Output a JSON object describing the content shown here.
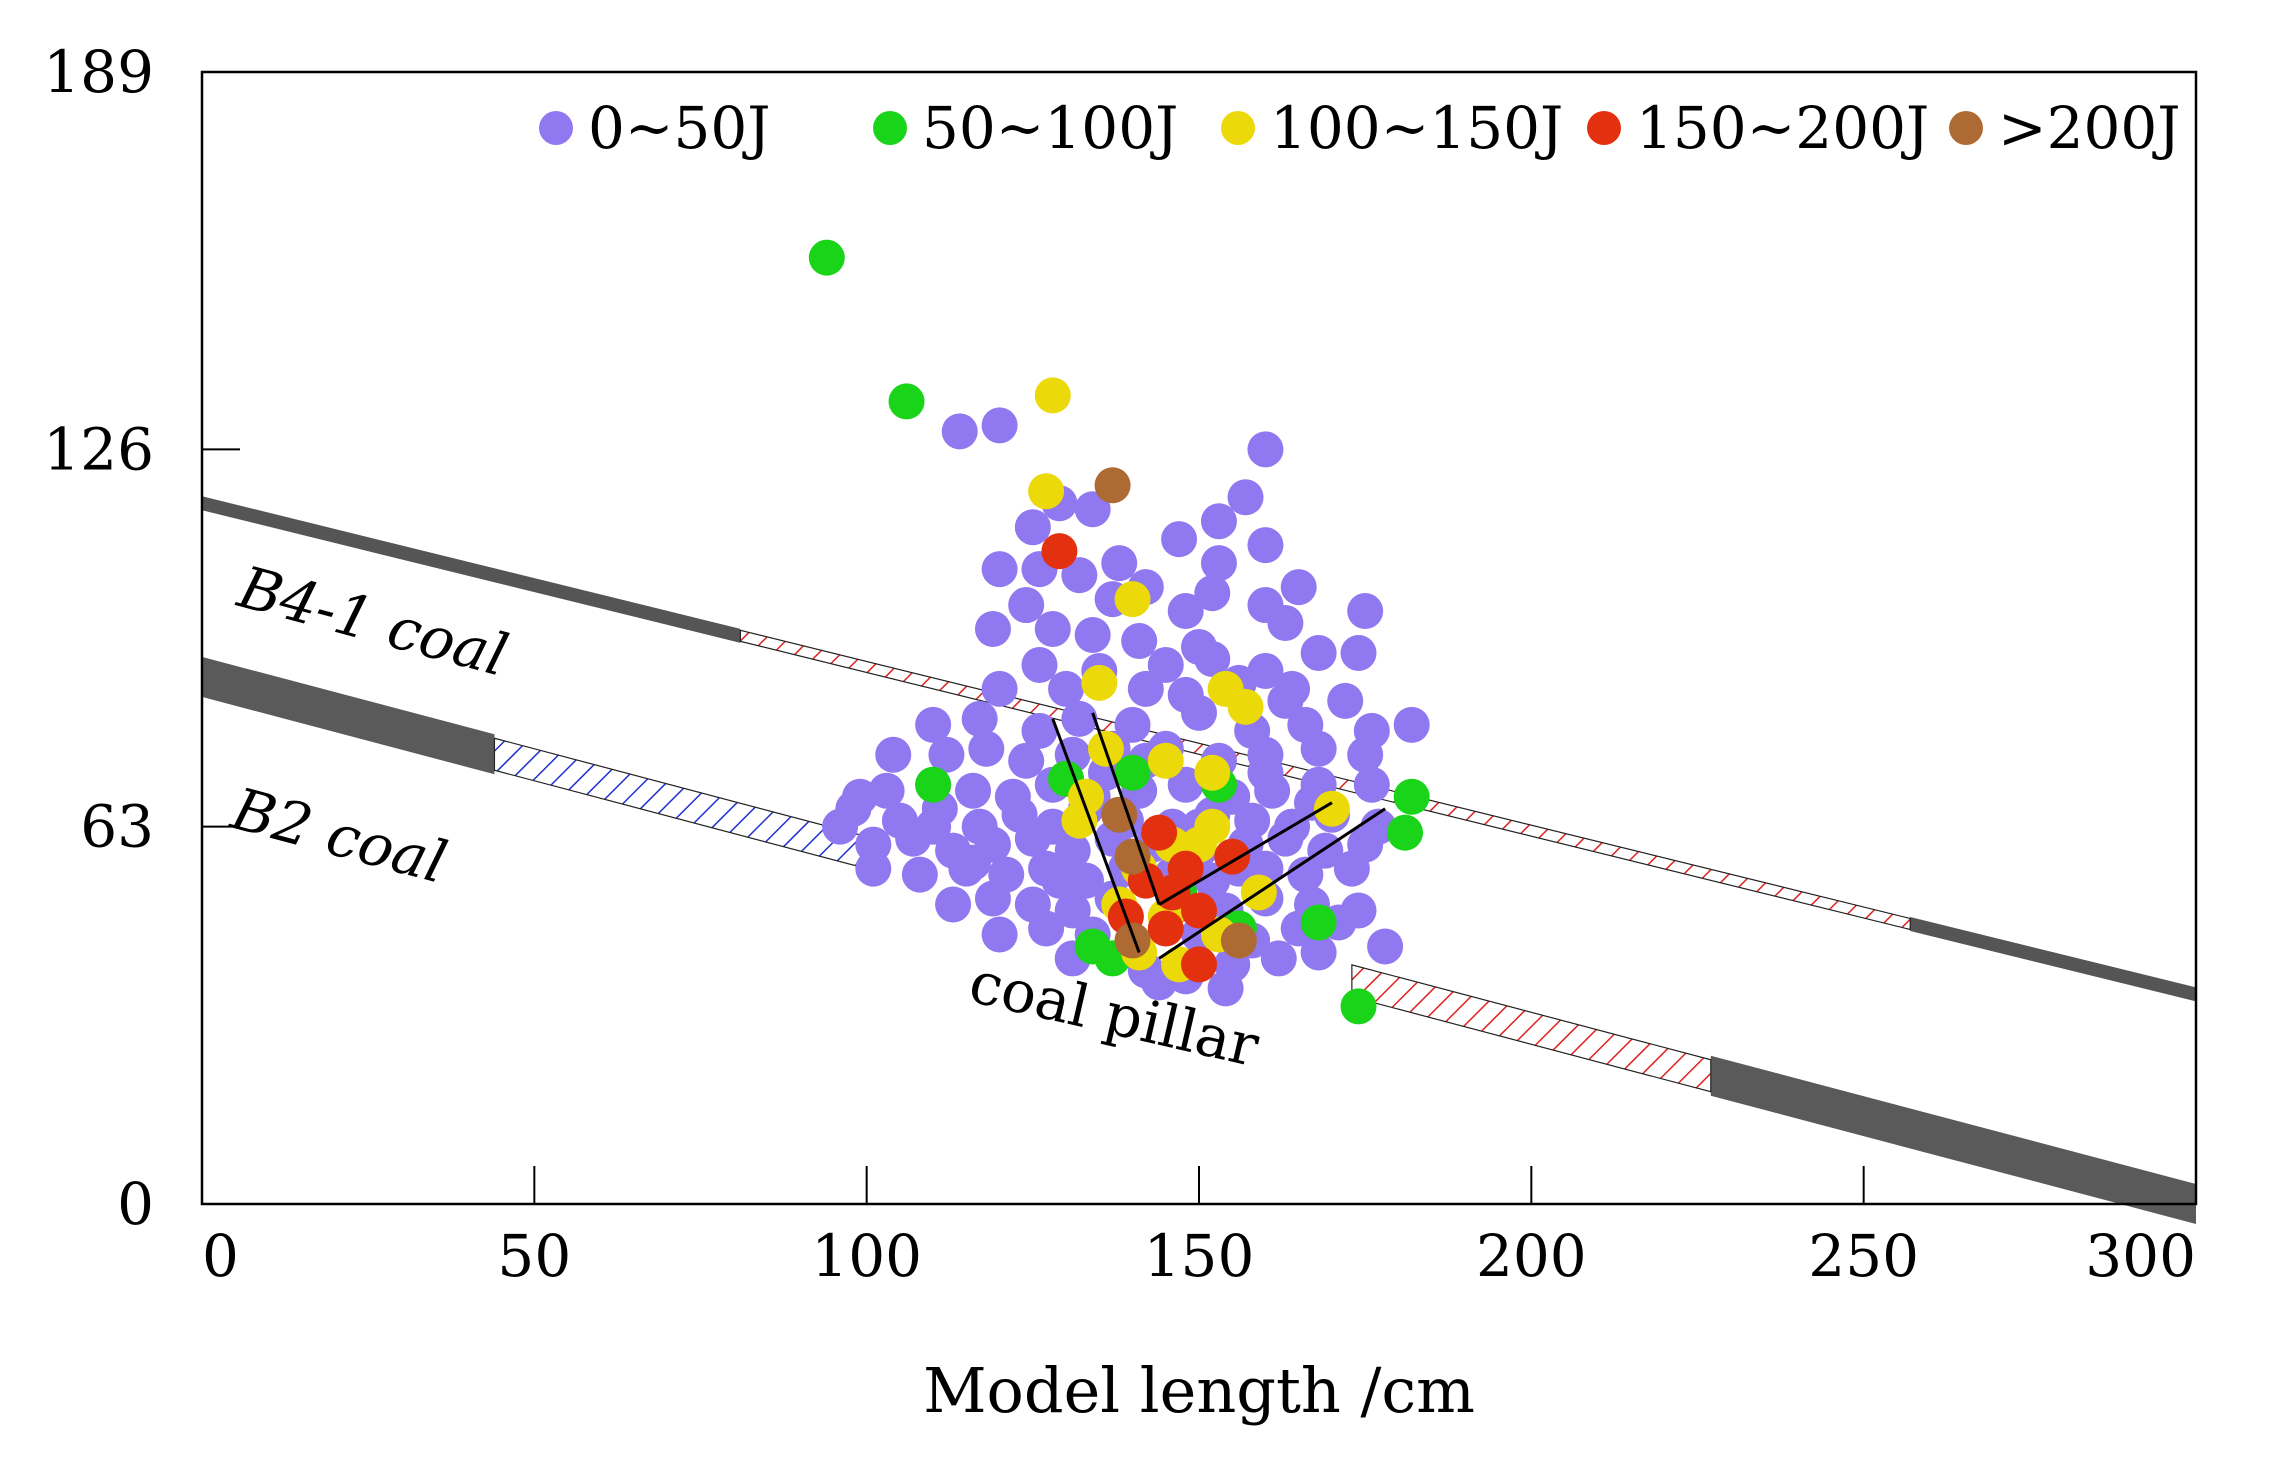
{
  "chart_data": {
    "type": "scatter",
    "title": "",
    "xlabel": "Model length /cm",
    "ylabel": "",
    "xlim": [
      0,
      300
    ],
    "ylim": [
      0,
      189
    ],
    "xticks": [
      0,
      50,
      100,
      150,
      200,
      250,
      300
    ],
    "yticks": [
      0,
      63,
      126,
      189
    ],
    "legend": {
      "placement": "top",
      "entries": [
        {
          "label": "0~50J",
          "color": "#8f78f0"
        },
        {
          "label": "50~100J",
          "color": "#19d419"
        },
        {
          "label": "100~150J",
          "color": "#ecd90a"
        },
        {
          "label": "150~200J",
          "color": "#e3300e"
        },
        {
          "label": ">200J",
          "color": "#ad6a32"
        }
      ]
    },
    "annotations": [
      {
        "text": "B4-1 coal",
        "x": 5,
        "y": 100,
        "angle": 15
      },
      {
        "text": "B2 coal",
        "x": 4,
        "y": 63,
        "angle": 15
      },
      {
        "text": "coal pillar",
        "x": 115,
        "y": 34,
        "angle": 13
      }
    ],
    "seams": [
      {
        "name": "B4-1 coal",
        "x0": 0,
        "y0": 117,
        "x1": 300,
        "y1": 35,
        "solid_ranges": [
          [
            0,
            81
          ],
          [
            257,
            300
          ]
        ],
        "hatched_range": [
          81,
          257
        ],
        "hatch_color": "#e02020"
      },
      {
        "name": "B2 coal",
        "x0": 0,
        "y0": 88,
        "x1": 300,
        "y1": 0,
        "solid_ranges": [
          [
            0,
            44
          ],
          [
            227,
            300
          ]
        ],
        "hatched_ranges": [
          {
            "range": [
              44,
              101
            ],
            "color": "#2030d0"
          },
          {
            "range": [
              173,
              227
            ],
            "color": "#e02020"
          }
        ]
      }
    ],
    "fracture_lines": [
      {
        "x0": 128,
        "y0": 81,
        "x1": 141,
        "y1": 42
      },
      {
        "x0": 134,
        "y0": 82,
        "x1": 144,
        "y1": 50
      },
      {
        "x0": 144,
        "y0": 50,
        "x1": 170,
        "y1": 67
      },
      {
        "x0": 144,
        "y0": 41,
        "x1": 178,
        "y1": 66
      }
    ],
    "series": [
      {
        "name": "0~50J",
        "color": "#8f78f0",
        "points": [
          [
            114,
            129
          ],
          [
            120,
            130
          ],
          [
            160,
            126
          ],
          [
            129,
            117
          ],
          [
            157,
            118
          ],
          [
            125,
            113
          ],
          [
            134,
            116
          ],
          [
            153,
            114
          ],
          [
            147,
            111
          ],
          [
            138,
            107
          ],
          [
            160,
            110
          ],
          [
            153,
            107
          ],
          [
            120,
            106
          ],
          [
            126,
            106
          ],
          [
            132,
            105
          ],
          [
            142,
            103
          ],
          [
            152,
            102
          ],
          [
            165,
            103
          ],
          [
            124,
            100
          ],
          [
            137,
            101
          ],
          [
            148,
            99
          ],
          [
            160,
            100
          ],
          [
            175,
            99
          ],
          [
            119,
            96
          ],
          [
            128,
            96
          ],
          [
            134,
            95
          ],
          [
            141,
            94
          ],
          [
            150,
            93
          ],
          [
            163,
            97
          ],
          [
            174,
            92
          ],
          [
            126,
            90
          ],
          [
            135,
            89
          ],
          [
            145,
            90
          ],
          [
            152,
            91
          ],
          [
            160,
            89
          ],
          [
            168,
            92
          ],
          [
            120,
            86
          ],
          [
            130,
            86
          ],
          [
            142,
            86
          ],
          [
            148,
            85
          ],
          [
            156,
            87
          ],
          [
            164,
            86
          ],
          [
            172,
            84
          ],
          [
            110,
            80
          ],
          [
            117,
            81
          ],
          [
            126,
            79
          ],
          [
            132,
            81
          ],
          [
            140,
            80
          ],
          [
            150,
            82
          ],
          [
            158,
            79
          ],
          [
            166,
            80
          ],
          [
            176,
            79
          ],
          [
            182,
            80
          ],
          [
            104,
            75
          ],
          [
            112,
            75
          ],
          [
            118,
            76
          ],
          [
            124,
            74
          ],
          [
            131,
            75
          ],
          [
            137,
            76
          ],
          [
            145,
            76
          ],
          [
            153,
            74
          ],
          [
            160,
            75
          ],
          [
            168,
            76
          ],
          [
            175,
            75
          ],
          [
            103,
            69
          ],
          [
            110,
            70
          ],
          [
            116,
            69
          ],
          [
            122,
            68
          ],
          [
            128,
            70
          ],
          [
            134,
            68
          ],
          [
            141,
            69
          ],
          [
            148,
            70
          ],
          [
            155,
            68
          ],
          [
            161,
            69
          ],
          [
            168,
            70
          ],
          [
            176,
            70
          ],
          [
            98,
            66
          ],
          [
            105,
            64
          ],
          [
            111,
            66
          ],
          [
            117,
            63
          ],
          [
            123,
            65
          ],
          [
            128,
            63
          ],
          [
            133,
            66
          ],
          [
            139,
            64
          ],
          [
            146,
            63
          ],
          [
            152,
            65
          ],
          [
            158,
            64
          ],
          [
            164,
            63
          ],
          [
            170,
            65
          ],
          [
            177,
            63
          ],
          [
            96,
            63
          ],
          [
            101,
            60
          ],
          [
            107,
            61
          ],
          [
            113,
            59
          ],
          [
            119,
            60
          ],
          [
            125,
            61
          ],
          [
            131,
            59
          ],
          [
            137,
            61
          ],
          [
            143,
            60
          ],
          [
            150,
            59
          ],
          [
            157,
            60
          ],
          [
            163,
            61
          ],
          [
            169,
            59
          ],
          [
            175,
            60
          ],
          [
            101,
            56
          ],
          [
            108,
            55
          ],
          [
            115,
            56
          ],
          [
            121,
            55
          ],
          [
            127,
            56
          ],
          [
            133,
            54
          ],
          [
            139,
            56
          ],
          [
            146,
            55
          ],
          [
            152,
            54
          ],
          [
            160,
            56
          ],
          [
            166,
            55
          ],
          [
            173,
            56
          ],
          [
            113,
            50
          ],
          [
            119,
            51
          ],
          [
            125,
            50
          ],
          [
            131,
            49
          ],
          [
            137,
            51
          ],
          [
            147,
            50
          ],
          [
            154,
            49
          ],
          [
            160,
            51
          ],
          [
            167,
            50
          ],
          [
            174,
            49
          ],
          [
            120,
            45
          ],
          [
            127,
            46
          ],
          [
            134,
            45
          ],
          [
            140,
            44
          ],
          [
            150,
            45
          ],
          [
            158,
            44
          ],
          [
            165,
            46
          ],
          [
            171,
            47
          ],
          [
            178,
            43
          ],
          [
            131,
            41
          ],
          [
            142,
            39
          ],
          [
            148,
            38
          ],
          [
            155,
            40
          ],
          [
            162,
            41
          ],
          [
            168,
            42
          ],
          [
            144,
            37
          ],
          [
            154,
            36
          ],
          [
            116,
            57
          ],
          [
            150,
            63
          ],
          [
            156,
            56
          ],
          [
            136,
            72
          ],
          [
            142,
            74
          ],
          [
            160,
            72
          ],
          [
            167,
            67
          ],
          [
            110,
            63
          ],
          [
            99,
            68
          ],
          [
            129,
            54
          ],
          [
            163,
            84
          ]
        ]
      },
      {
        "name": "50~100J",
        "color": "#19d419",
        "points": [
          [
            94,
            158
          ],
          [
            106,
            134
          ],
          [
            110,
            70
          ],
          [
            134,
            43
          ],
          [
            137,
            41
          ],
          [
            182,
            68
          ],
          [
            181,
            62
          ],
          [
            174,
            33
          ],
          [
            130,
            71
          ],
          [
            140,
            72
          ],
          [
            156,
            46
          ],
          [
            168,
            47
          ],
          [
            147,
            52
          ],
          [
            153,
            70
          ]
        ]
      },
      {
        "name": "100~150J",
        "color": "#ecd90a",
        "points": [
          [
            128,
            135
          ],
          [
            127,
            119
          ],
          [
            140,
            101
          ],
          [
            135,
            87
          ],
          [
            154,
            86
          ],
          [
            157,
            83
          ],
          [
            170,
            66
          ],
          [
            136,
            76
          ],
          [
            145,
            74
          ],
          [
            152,
            72
          ],
          [
            133,
            68
          ],
          [
            141,
            56
          ],
          [
            146,
            60
          ],
          [
            150,
            60
          ],
          [
            138,
            50
          ],
          [
            145,
            48
          ],
          [
            141,
            42
          ],
          [
            147,
            40
          ],
          [
            153,
            45
          ],
          [
            159,
            52
          ],
          [
            152,
            63
          ],
          [
            132,
            64
          ]
        ]
      },
      {
        "name": "150~200J",
        "color": "#e3300e",
        "points": [
          [
            129,
            109
          ],
          [
            144,
            62
          ],
          [
            155,
            58
          ],
          [
            142,
            54
          ],
          [
            146,
            52
          ],
          [
            145,
            46
          ],
          [
            150,
            49
          ],
          [
            150,
            40
          ],
          [
            139,
            48
          ],
          [
            148,
            56
          ]
        ]
      },
      {
        "name": ">200J",
        "color": "#ad6a32",
        "points": [
          [
            137,
            120
          ],
          [
            140,
            58
          ],
          [
            140,
            44
          ],
          [
            156,
            44
          ],
          [
            138,
            65
          ]
        ]
      }
    ]
  }
}
